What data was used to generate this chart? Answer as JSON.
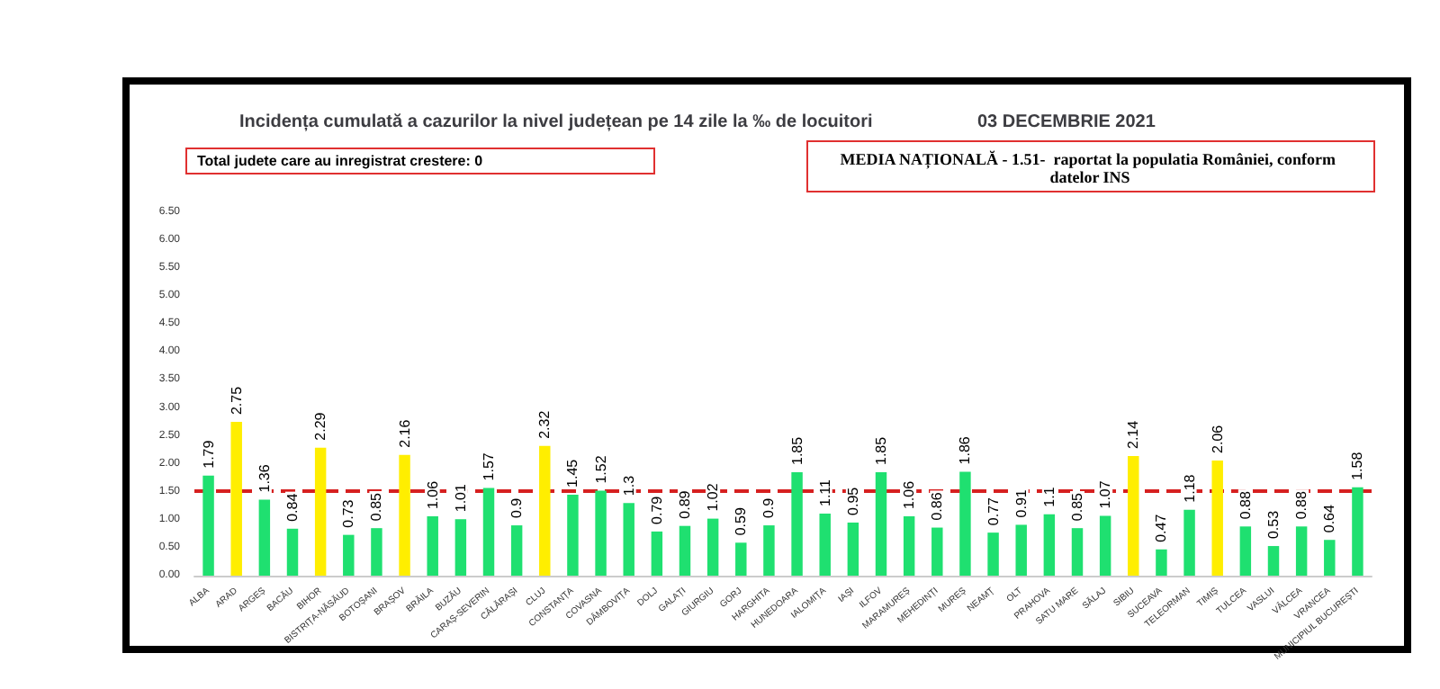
{
  "chart_data": {
    "type": "bar",
    "title": "Incidența cumulată a cazurilor la nivel județean pe 14 zile la ‰ de locuitori",
    "subtitle": "03 DECEMBRIE 2021",
    "annotations": [
      "Total judete care au inregistrat crestere: 0",
      "MEDIA NAȚIONALĂ - 1.51-  raportat la populatia României, conform datelor INS"
    ],
    "categories": [
      "ALBA",
      "ARAD",
      "ARGEȘ",
      "BACĂU",
      "BIHOR",
      "BISTRIȚA-NĂSĂUD",
      "BOTOȘANI",
      "BRAȘOV",
      "BRĂILA",
      "BUZĂU",
      "CARAȘ-SEVERIN",
      "CĂLĂRAȘI",
      "CLUJ",
      "CONSTANȚA",
      "COVASNA",
      "DÂMBOVIȚA",
      "DOLJ",
      "GALAȚI",
      "GIURGIU",
      "GORJ",
      "HARGHITA",
      "HUNEDOARA",
      "IALOMIȚA",
      "IAȘI",
      "ILFOV",
      "MARAMUREȘ",
      "MEHEDINȚI",
      "MUREȘ",
      "NEAMȚ",
      "OLT",
      "PRAHOVA",
      "SATU MARE",
      "SĂLAJ",
      "SIBIU",
      "SUCEAVA",
      "TELEORMAN",
      "TIMIȘ",
      "TULCEA",
      "VASLUI",
      "VÂLCEA",
      "VRANCEA",
      "MUNICIPIUL BUCUREȘTI"
    ],
    "values": [
      1.79,
      2.75,
      1.36,
      0.84,
      2.29,
      0.73,
      0.85,
      2.16,
      1.06,
      1.01,
      1.57,
      0.9,
      2.32,
      1.45,
      1.52,
      1.3,
      0.79,
      0.89,
      1.02,
      0.59,
      0.9,
      1.85,
      1.11,
      0.95,
      1.85,
      1.06,
      0.86,
      1.86,
      0.77,
      0.91,
      1.1,
      0.85,
      1.07,
      2.14,
      0.47,
      1.18,
      2.06,
      0.88,
      0.53,
      0.88,
      0.64,
      1.58
    ],
    "colors": [
      "#1fe070",
      "#ffee00",
      "#1fe070",
      "#1fe070",
      "#ffee00",
      "#1fe070",
      "#1fe070",
      "#ffee00",
      "#1fe070",
      "#1fe070",
      "#1fe070",
      "#1fe070",
      "#ffee00",
      "#1fe070",
      "#1fe070",
      "#1fe070",
      "#1fe070",
      "#1fe070",
      "#1fe070",
      "#1fe070",
      "#1fe070",
      "#1fe070",
      "#1fe070",
      "#1fe070",
      "#1fe070",
      "#1fe070",
      "#1fe070",
      "#1fe070",
      "#1fe070",
      "#1fe070",
      "#1fe070",
      "#1fe070",
      "#1fe070",
      "#ffee00",
      "#1fe070",
      "#1fe070",
      "#ffee00",
      "#1fe070",
      "#1fe070",
      "#1fe070",
      "#1fe070",
      "#1fe070"
    ],
    "data_labels": true,
    "ylim": [
      0,
      6.5
    ],
    "yticks": [
      {
        "value": 0,
        "label": "0.00"
      },
      {
        "value": 0.5,
        "label": "0.50"
      },
      {
        "value": 1,
        "label": "1.00"
      },
      {
        "value": 1.5,
        "label": "1.50"
      },
      {
        "value": 2,
        "label": "2.00"
      },
      {
        "value": 2.5,
        "label": "2.50"
      },
      {
        "value": 3,
        "label": "3.00"
      },
      {
        "value": 3.5,
        "label": "3.50"
      },
      {
        "value": 4,
        "label": "4.00"
      },
      {
        "value": 4.5,
        "label": "4.50"
      },
      {
        "value": 5,
        "label": "5.00"
      },
      {
        "value": 5.5,
        "label": "5.50"
      },
      {
        "value": 6,
        "label": "6.00"
      },
      {
        "value": 6.5,
        "label": "6.50"
      }
    ],
    "ref_lines": [
      {
        "axis": "y",
        "value": 1.51,
        "label": null,
        "color": "#d62020",
        "line_style": "dashed"
      }
    ],
    "grid": false
  }
}
